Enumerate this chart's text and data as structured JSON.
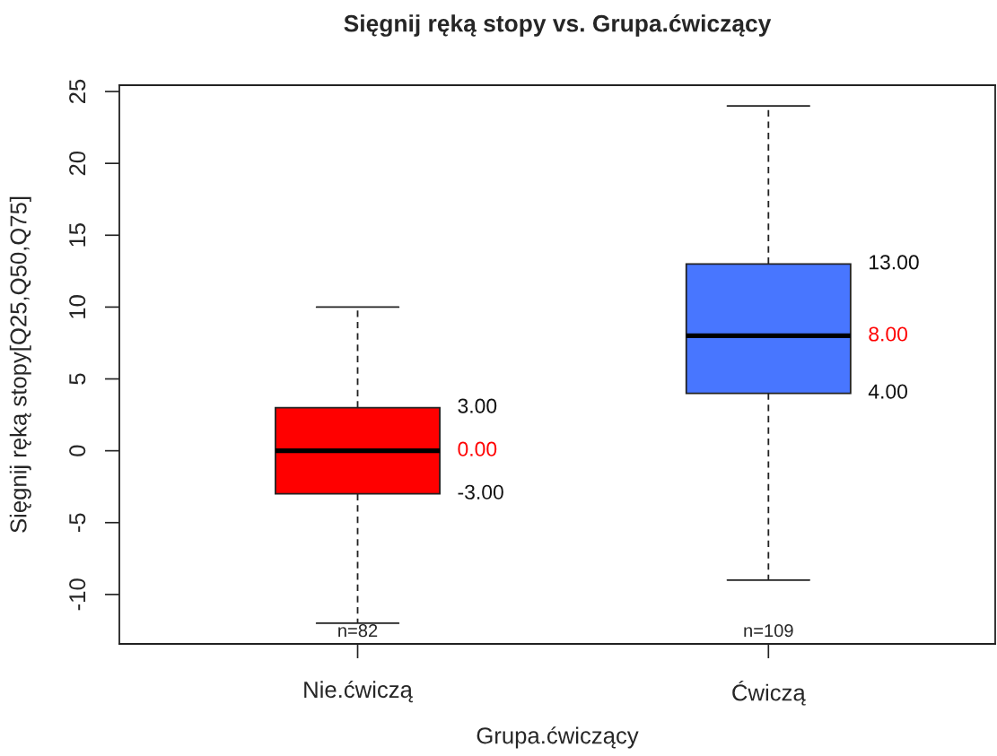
{
  "chart_data": {
    "type": "box",
    "title": "Sięgnij ręką stopy vs. Grupa.ćwiczący",
    "xlabel": "Grupa.ćwiczący",
    "ylabel": "Sięgnij ręką stopy[Q25,Q50,Q75]",
    "categories": [
      "Nie.ćwiczą",
      "Ćwiczą"
    ],
    "colors": [
      "#ff0000",
      "#4876ff"
    ],
    "boxes": [
      {
        "low": -12,
        "q1": -3,
        "median": 0,
        "q3": 3,
        "high": 10
      },
      {
        "low": -9,
        "q1": 4,
        "median": 8,
        "q3": 13,
        "high": 24
      }
    ],
    "ylim": [
      -13.44,
      25.44
    ],
    "yticks": [
      -10,
      -5,
      0,
      5,
      10,
      15,
      20,
      25
    ],
    "annotations": [
      "3.00",
      "0.00",
      "-3.00",
      "13.00",
      "8.00",
      "4.00",
      "n=82",
      "n=109"
    ]
  }
}
